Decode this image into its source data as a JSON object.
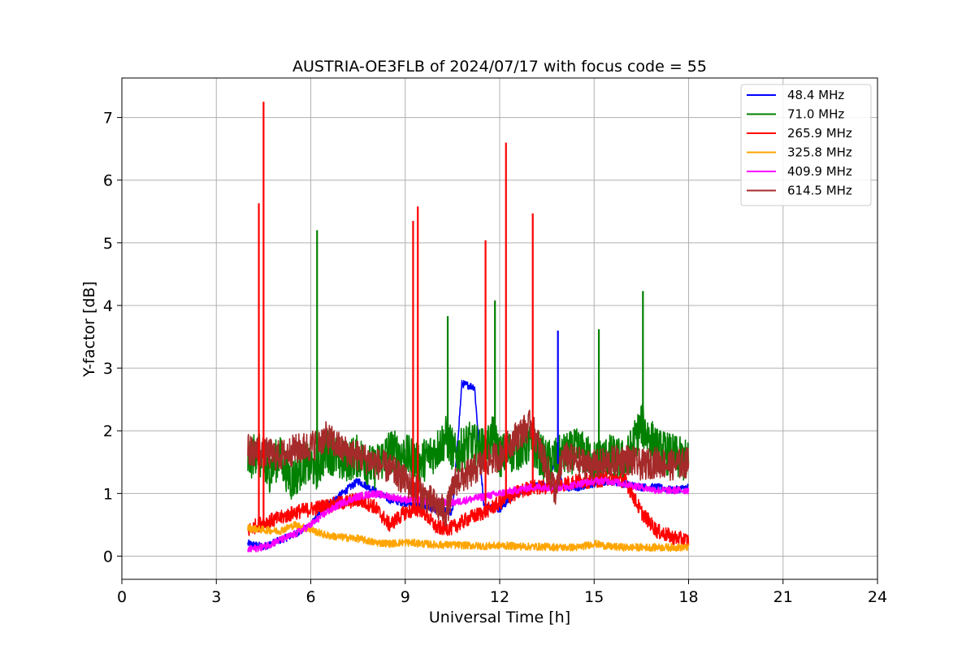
{
  "chart_data": {
    "type": "line",
    "title": "AUSTRIA-OE3FLB of 2024/07/17 with focus code = 55",
    "xlabel": "Universal Time [h]",
    "ylabel": "Y-factor [dB]",
    "xlim": [
      0,
      24
    ],
    "ylim": [
      -0.37,
      7.63
    ],
    "xticks": [
      "0",
      "3",
      "6",
      "9",
      "12",
      "15",
      "18",
      "21",
      "24"
    ],
    "yticks": [
      "0",
      "1",
      "2",
      "3",
      "4",
      "5",
      "6",
      "7"
    ],
    "grid": true,
    "legend_position": "top-right",
    "series": [
      {
        "name": " 48.4 MHz",
        "color": "#0000ff",
        "x": [
          4.0,
          4.5,
          5.0,
          5.5,
          6.0,
          6.5,
          7.0,
          7.5,
          8.0,
          8.5,
          9.0,
          9.5,
          10.0,
          10.5,
          10.8,
          11.2,
          11.5,
          12.0,
          12.5,
          13.0,
          13.5,
          13.8,
          14.0,
          14.5,
          15.0,
          15.5,
          16.0,
          16.5,
          17.0,
          17.5,
          18.0
        ],
        "y": [
          0.2,
          0.15,
          0.25,
          0.35,
          0.5,
          0.8,
          1.0,
          1.2,
          1.05,
          0.9,
          0.85,
          0.8,
          0.75,
          0.7,
          2.75,
          2.7,
          0.8,
          0.75,
          1.0,
          1.1,
          1.15,
          1.6,
          1.1,
          1.1,
          1.15,
          1.2,
          1.15,
          1.1,
          1.1,
          1.05,
          1.1
        ]
      },
      {
        "name": " 71.0 MHz",
        "color": "#008000",
        "x": [
          4.0,
          4.3,
          4.6,
          5.0,
          5.4,
          5.8,
          6.2,
          6.5,
          7.0,
          7.5,
          8.0,
          8.5,
          9.0,
          9.5,
          10.0,
          10.3,
          10.6,
          11.0,
          11.5,
          11.8,
          12.0,
          12.5,
          13.0,
          13.5,
          14.0,
          14.5,
          15.0,
          15.5,
          16.0,
          16.5,
          17.0,
          17.5,
          18.0
        ],
        "y": [
          1.5,
          1.7,
          1.3,
          1.6,
          1.2,
          1.5,
          1.4,
          1.7,
          1.5,
          1.6,
          1.4,
          1.7,
          1.6,
          1.5,
          1.7,
          1.9,
          1.6,
          1.8,
          1.7,
          1.9,
          1.6,
          1.7,
          1.8,
          1.5,
          1.6,
          1.7,
          1.5,
          1.6,
          1.5,
          2.1,
          1.7,
          1.6,
          1.5
        ]
      },
      {
        "name": "265.9 MHz",
        "color": "#ff0000",
        "x": [
          4.0,
          4.3,
          4.6,
          5.0,
          5.5,
          6.0,
          6.5,
          7.0,
          7.5,
          8.0,
          8.5,
          9.0,
          9.5,
          10.0,
          10.5,
          11.0,
          11.5,
          12.0,
          12.5,
          13.0,
          13.5,
          14.0,
          14.5,
          15.0,
          15.5,
          16.0,
          16.5,
          17.0,
          17.5,
          18.0
        ],
        "y": [
          0.4,
          0.5,
          0.55,
          0.6,
          0.7,
          0.75,
          0.8,
          0.85,
          0.9,
          0.8,
          0.5,
          0.7,
          0.75,
          0.45,
          0.45,
          0.6,
          0.7,
          0.85,
          1.0,
          1.1,
          1.1,
          1.15,
          1.2,
          1.2,
          1.25,
          1.2,
          0.7,
          0.4,
          0.3,
          0.25
        ]
      },
      {
        "name": "325.8 MHz",
        "color": "#ffa500",
        "x": [
          4.0,
          4.5,
          5.0,
          5.5,
          6.0,
          6.5,
          7.0,
          7.5,
          8.0,
          8.5,
          9.0,
          9.5,
          10.0,
          10.5,
          11.0,
          11.5,
          12.0,
          12.5,
          13.0,
          13.5,
          14.0,
          14.5,
          15.0,
          15.5,
          16.0,
          16.5,
          17.0,
          17.5,
          18.0
        ],
        "y": [
          0.45,
          0.42,
          0.4,
          0.5,
          0.42,
          0.33,
          0.3,
          0.28,
          0.22,
          0.2,
          0.22,
          0.2,
          0.18,
          0.18,
          0.17,
          0.16,
          0.17,
          0.16,
          0.15,
          0.15,
          0.14,
          0.14,
          0.2,
          0.15,
          0.14,
          0.14,
          0.14,
          0.14,
          0.14
        ]
      },
      {
        "name": "409.9 MHz",
        "color": "#ff00ff",
        "x": [
          4.0,
          4.5,
          5.0,
          5.5,
          6.0,
          6.5,
          7.0,
          7.5,
          8.0,
          8.5,
          9.0,
          9.5,
          10.0,
          10.5,
          11.0,
          11.5,
          12.0,
          12.5,
          13.0,
          13.5,
          14.0,
          14.5,
          15.0,
          15.5,
          16.0,
          16.5,
          17.0,
          17.5,
          18.0
        ],
        "y": [
          0.1,
          0.15,
          0.25,
          0.35,
          0.5,
          0.7,
          0.85,
          0.95,
          1.0,
          0.95,
          0.9,
          0.9,
          0.85,
          0.85,
          0.9,
          0.95,
          1.0,
          1.05,
          1.1,
          1.1,
          1.1,
          1.15,
          1.2,
          1.2,
          1.15,
          1.1,
          1.05,
          1.05,
          1.05
        ]
      },
      {
        "name": "614.5 MHz",
        "color": "#a52a2a",
        "x": [
          4.0,
          4.5,
          5.0,
          5.5,
          6.0,
          6.5,
          7.0,
          7.5,
          8.0,
          8.5,
          9.0,
          9.5,
          10.0,
          10.3,
          10.6,
          11.0,
          11.5,
          12.0,
          12.5,
          13.0,
          13.5,
          13.8,
          14.0,
          14.5,
          15.0,
          15.5,
          16.0,
          16.5,
          17.0,
          17.5,
          18.0
        ],
        "y": [
          1.7,
          1.65,
          1.6,
          1.7,
          1.75,
          1.9,
          1.7,
          1.6,
          1.5,
          1.4,
          1.2,
          1.0,
          0.8,
          0.7,
          1.2,
          1.3,
          1.5,
          1.6,
          1.9,
          2.1,
          1.4,
          1.0,
          1.6,
          1.5,
          1.45,
          1.5,
          1.55,
          1.45,
          1.5,
          1.45,
          1.5
        ]
      }
    ],
    "spikes": [
      {
        "series": "265.9 MHz",
        "x": 4.35,
        "y": 5.63
      },
      {
        "series": "265.9 MHz",
        "x": 4.5,
        "y": 7.25
      },
      {
        "series": "71.0 MHz",
        "x": 6.2,
        "y": 5.2
      },
      {
        "series": "265.9 MHz",
        "x": 9.25,
        "y": 5.35
      },
      {
        "series": "265.9 MHz",
        "x": 9.4,
        "y": 5.58
      },
      {
        "series": "71.0 MHz",
        "x": 10.35,
        "y": 3.83
      },
      {
        "series": "265.9 MHz",
        "x": 11.55,
        "y": 5.04
      },
      {
        "series": "71.0 MHz",
        "x": 11.85,
        "y": 4.08
      },
      {
        "series": "265.9 MHz",
        "x": 12.2,
        "y": 6.6
      },
      {
        "series": "265.9 MHz",
        "x": 13.05,
        "y": 5.47
      },
      {
        "series": "48.4 MHz",
        "x": 13.85,
        "y": 3.6
      },
      {
        "series": "71.0 MHz",
        "x": 15.15,
        "y": 3.62
      },
      {
        "series": "71.0 MHz",
        "x": 16.55,
        "y": 4.23
      }
    ]
  }
}
